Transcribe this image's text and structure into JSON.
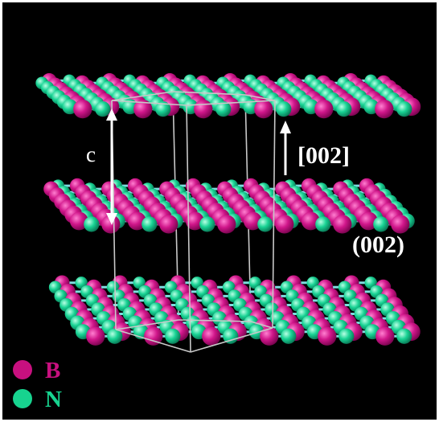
{
  "diagram": {
    "labels": {
      "lattice_c": "c",
      "direction": "[002]",
      "plane": "(002)"
    },
    "legend": [
      {
        "symbol": "B",
        "color": "#c8107f"
      },
      {
        "symbol": "N",
        "color": "#17d38f"
      }
    ],
    "colors": {
      "background": "#000000",
      "frame": "#ffffff",
      "bond": "#7ddde0",
      "cell_edge": "#c8c8c8",
      "arrow": "#ffffff"
    },
    "layers": 3
  }
}
